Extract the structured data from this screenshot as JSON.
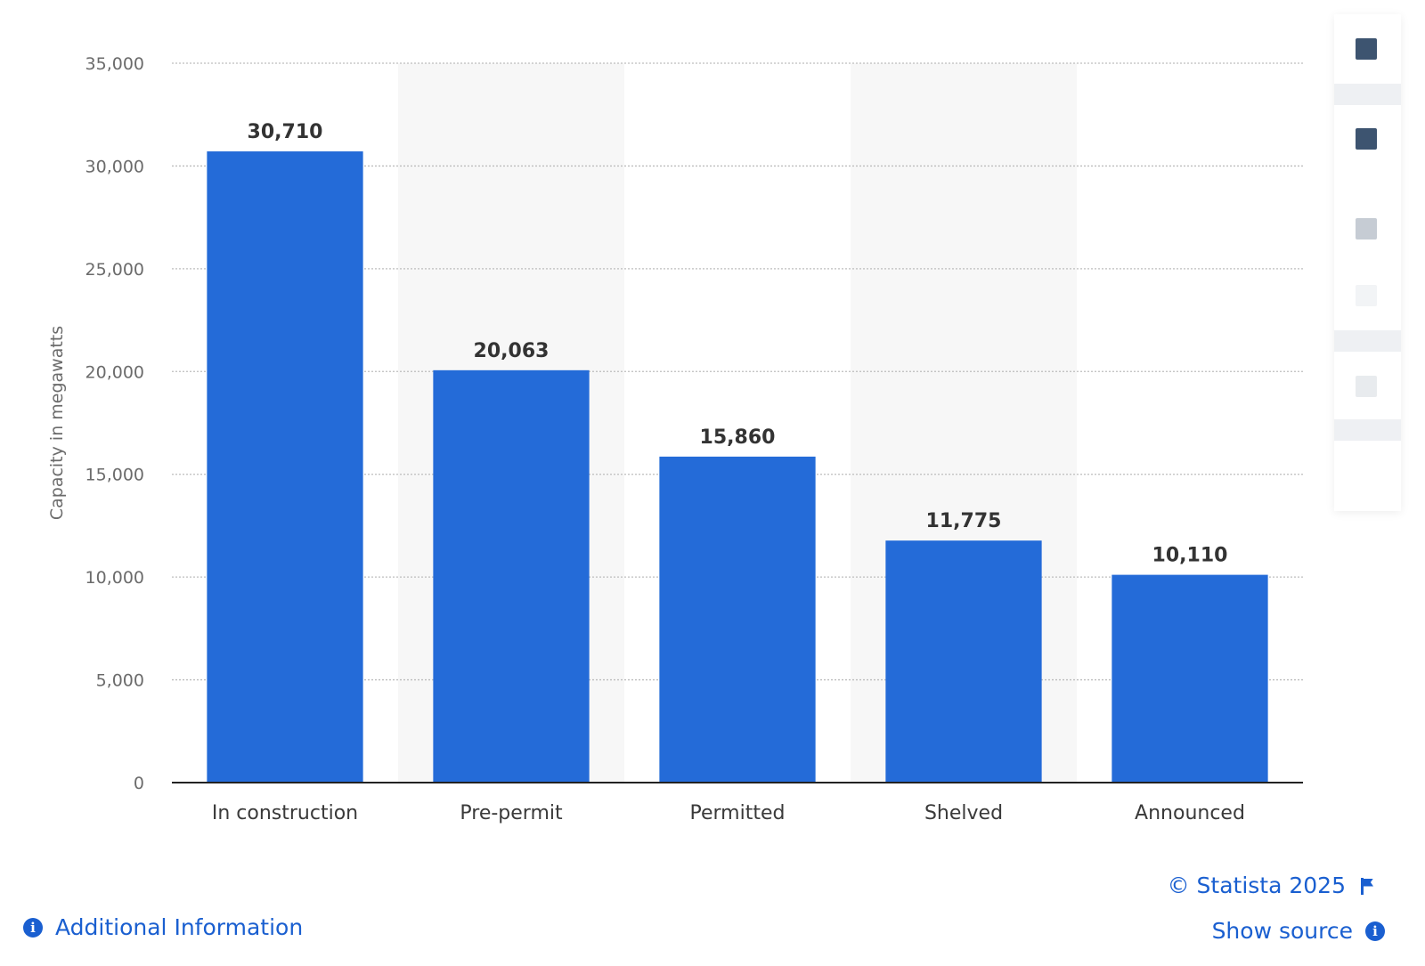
{
  "chart_data": {
    "type": "bar",
    "categories": [
      "In construction",
      "Pre-permit",
      "Permitted",
      "Shelved",
      "Announced"
    ],
    "values": [
      30710,
      20063,
      15860,
      11775,
      10110
    ],
    "value_labels": [
      "30,710",
      "20,063",
      "15,860",
      "11,775",
      "10,110"
    ],
    "ylabel": "Capacity in megawatts",
    "ylim": [
      0,
      35000
    ],
    "yticks": [
      0,
      5000,
      10000,
      15000,
      20000,
      25000,
      30000,
      35000
    ],
    "ytick_labels": [
      "0",
      "5,000",
      "10,000",
      "15,000",
      "20,000",
      "25,000",
      "30,000",
      "35,000"
    ],
    "grid": true,
    "bar_color": "#246bd8"
  },
  "footer": {
    "copyright": "© Statista 2025",
    "additional_info": "Additional Information",
    "show_source": "Show source"
  },
  "toolbar": {
    "icons": [
      "chart-icon",
      "chart-icon",
      "settings-icon",
      "share-icon",
      "print-icon"
    ]
  }
}
